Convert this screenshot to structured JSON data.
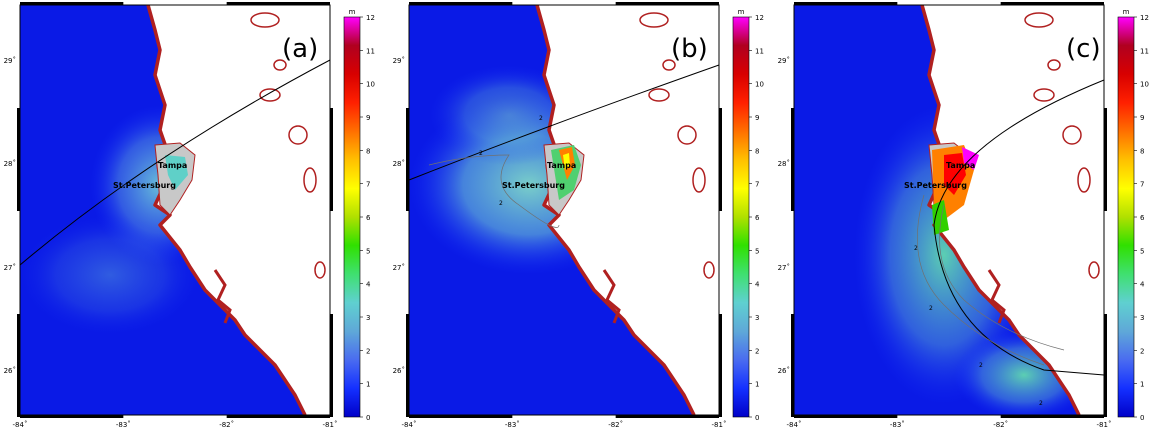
{
  "panels": [
    {
      "label": "(a)",
      "city_labels": [
        "Tampa",
        "St.Petersburg"
      ],
      "contour_labels": []
    },
    {
      "label": "(b)",
      "city_labels": [
        "Tampa",
        "St.Petersburg"
      ],
      "contour_labels": [
        "2",
        "2",
        "2"
      ]
    },
    {
      "label": "(c)",
      "city_labels": [
        "Tampa",
        "St.Petersburg"
      ],
      "contour_labels": [
        "2",
        "2",
        "2",
        "2"
      ]
    }
  ],
  "x_ticks": [
    "-84˚",
    "-83˚",
    "-82˚",
    "-81˚"
  ],
  "y_ticks": [
    "29˚",
    "28˚",
    "27˚",
    "26˚"
  ],
  "colorbar": {
    "unit": "m",
    "ticks": [
      "0",
      "1",
      "2",
      "3",
      "4",
      "5",
      "6",
      "7",
      "8",
      "9",
      "10",
      "11",
      "12"
    ],
    "colors": [
      "#0000c8",
      "#1430ff",
      "#4a6cf0",
      "#5fa8d8",
      "#5fd0d0",
      "#3fe070",
      "#30e000",
      "#b0e000",
      "#ffff00",
      "#ffc000",
      "#ff7000",
      "#ff2000",
      "#d80000",
      "#b00020",
      "#ff00ff"
    ]
  },
  "colors": {
    "ocean_deep": "#0a1ae6",
    "land": "#ffffff",
    "coast": "#b02020",
    "track": "#000000"
  }
}
